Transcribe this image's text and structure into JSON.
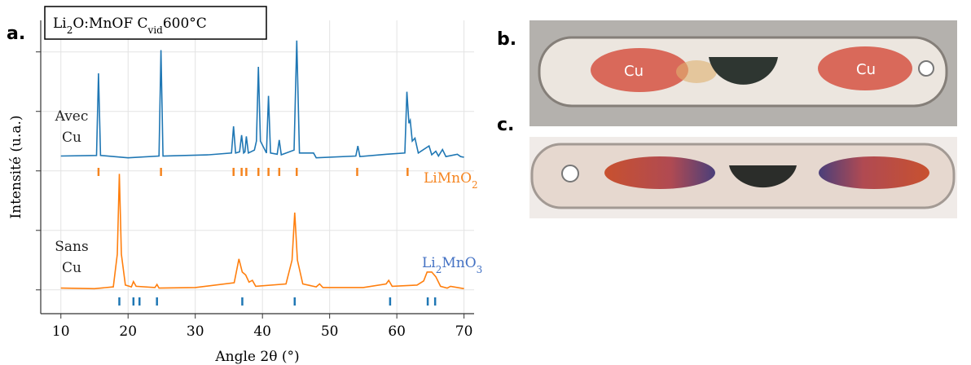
{
  "panel_labels": [
    "a.",
    "b.",
    "c."
  ],
  "photos": {
    "b_labels": [
      "Cu",
      "Cu"
    ]
  },
  "chart_data": {
    "type": "line",
    "title_parts": [
      {
        "text": "Li"
      },
      {
        "text": "2",
        "sub": true
      },
      {
        "text": "O:MnOF C"
      },
      {
        "text": "vid",
        "sub": true
      },
      {
        "text": "600°C"
      }
    ],
    "xlabel": "Angle 2θ (°)",
    "ylabel": "Intensité (u.a.)",
    "xlim": [
      7,
      71.5
    ],
    "xticks": [
      10,
      20,
      30,
      40,
      50,
      60,
      70
    ],
    "ylim": [
      -0.4,
      4.53
    ],
    "yticks": [
      0,
      1,
      2,
      3,
      4
    ],
    "grid": true,
    "series": [
      {
        "name": "Avec Cu",
        "color": "#1f77b4",
        "x": [
          10,
          15.3,
          15.6,
          15.9,
          20,
          24.6,
          24.9,
          25.2,
          32,
          35.4,
          35.7,
          36.0,
          36.6,
          36.9,
          37.2,
          37.4,
          37.6,
          37.9,
          38.8,
          39.1,
          39.4,
          39.7,
          40.6,
          40.9,
          41.2,
          42.2,
          42.5,
          42.8,
          44.7,
          45.1,
          45.5,
          47.6,
          48,
          53.9,
          54.2,
          54.5,
          58.5,
          61.2,
          61.5,
          61.8,
          62.0,
          62.3,
          62.7,
          63.2,
          64.8,
          65.2,
          65.8,
          66.2,
          66.8,
          67.3,
          69,
          69.5,
          70
        ],
        "values": [
          2.25,
          2.26,
          3.64,
          2.26,
          2.22,
          2.25,
          4.03,
          2.25,
          2.27,
          2.3,
          2.75,
          2.3,
          2.32,
          2.6,
          2.3,
          2.32,
          2.58,
          2.3,
          2.35,
          2.5,
          3.75,
          2.5,
          2.3,
          3.26,
          2.3,
          2.28,
          2.52,
          2.27,
          2.35,
          4.19,
          2.3,
          2.3,
          2.22,
          2.25,
          2.42,
          2.24,
          2.28,
          2.3,
          3.33,
          2.8,
          2.85,
          2.5,
          2.55,
          2.3,
          2.42,
          2.27,
          2.33,
          2.25,
          2.36,
          2.24,
          2.28,
          2.24,
          2.23
        ]
      },
      {
        "name": "Sans Cu",
        "color": "#ff7f0e",
        "x": [
          10,
          15,
          17.8,
          18.4,
          18.7,
          19.0,
          19.6,
          20.5,
          20.8,
          21.2,
          24,
          24.3,
          24.6,
          30,
          35.8,
          36.5,
          37.0,
          37.5,
          38.0,
          38.5,
          39,
          43.5,
          44.4,
          44.8,
          45.2,
          46,
          48,
          48.5,
          49,
          55,
          58.4,
          58.8,
          59.3,
          63,
          64,
          64.5,
          65.2,
          65.8,
          66.5,
          67.5,
          68,
          70
        ],
        "values": [
          0.03,
          0.02,
          0.05,
          0.6,
          1.95,
          0.6,
          0.08,
          0.05,
          0.14,
          0.06,
          0.04,
          0.09,
          0.03,
          0.04,
          0.12,
          0.52,
          0.3,
          0.25,
          0.13,
          0.16,
          0.06,
          0.1,
          0.5,
          1.3,
          0.5,
          0.1,
          0.05,
          0.1,
          0.04,
          0.04,
          0.1,
          0.16,
          0.06,
          0.08,
          0.15,
          0.3,
          0.3,
          0.22,
          0.06,
          0.03,
          0.06,
          0.02
        ]
      }
    ],
    "references": [
      {
        "name_parts": [
          {
            "text": "LiMnO"
          },
          {
            "text": "2",
            "sub": true
          }
        ],
        "color": "#f5841f",
        "positions": [
          15.6,
          24.9,
          35.7,
          36.9,
          37.6,
          39.4,
          40.9,
          42.5,
          45.1,
          54.1,
          61.6
        ]
      },
      {
        "name_parts": [
          {
            "text": "Li"
          },
          {
            "text": "2",
            "sub": true
          },
          {
            "text": "MnO"
          },
          {
            "text": "3",
            "sub": true
          }
        ],
        "color": "#1f77b4",
        "label_color": "#4472c4",
        "positions": [
          18.7,
          20.8,
          21.7,
          24.3,
          37.0,
          44.8,
          59.0,
          64.6,
          65.7
        ]
      }
    ]
  }
}
